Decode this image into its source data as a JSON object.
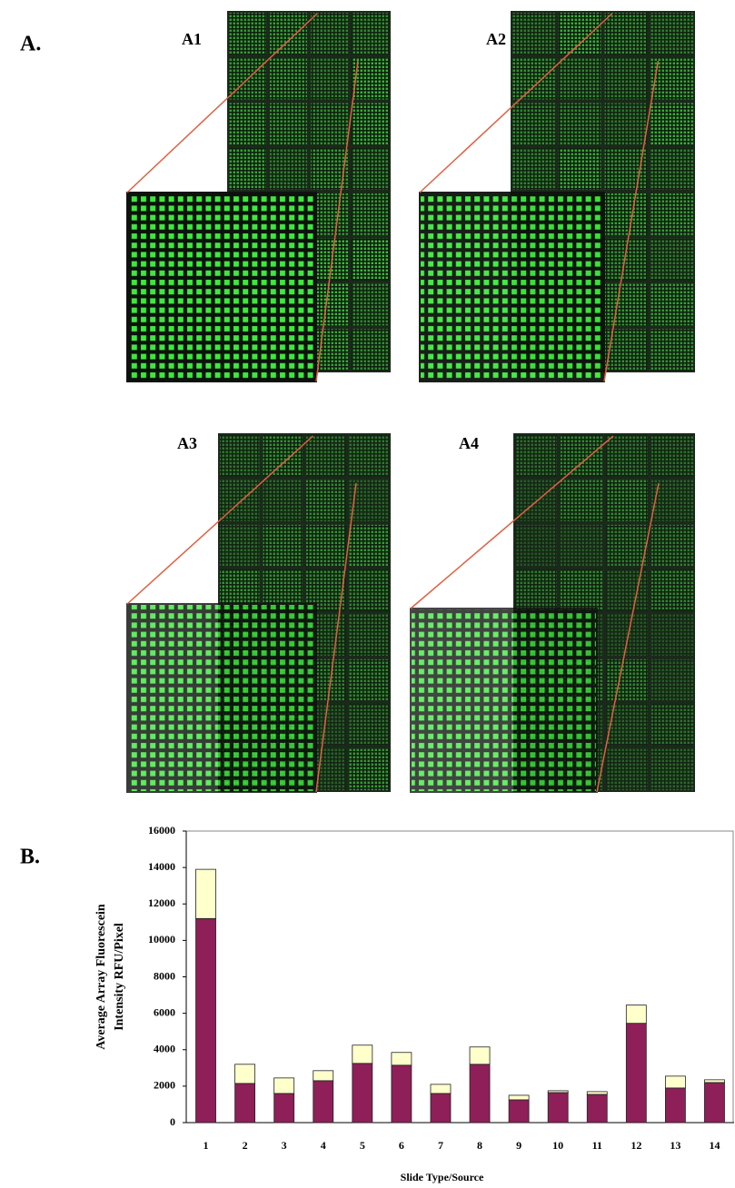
{
  "panel_a": {
    "label": "A.",
    "images": [
      "A1",
      "A2",
      "A3",
      "A4"
    ]
  },
  "panel_b": {
    "label": "B."
  },
  "chart_data": {
    "type": "stacked_bar",
    "categories": [
      "1",
      "2",
      "3",
      "4",
      "5",
      "6",
      "7",
      "8",
      "9",
      "10",
      "11",
      "12",
      "13",
      "14"
    ],
    "series": [
      {
        "color": "#8e1f58",
        "values": [
          11200,
          2150,
          1600,
          2300,
          3250,
          3150,
          1600,
          3200,
          1250,
          1650,
          1550,
          5450,
          1900,
          2200
        ]
      },
      {
        "color": "#ffffcc",
        "values": [
          2700,
          1050,
          850,
          550,
          1000,
          700,
          500,
          950,
          250,
          100,
          150,
          1000,
          650,
          150
        ]
      }
    ],
    "y_label": "Average Array Fluorescein Intensity RFU/Pixel",
    "x_label": "Slide Type/Source",
    "ylim": [
      0,
      16000
    ],
    "yticks": [
      0,
      2000,
      4000,
      6000,
      8000,
      10000,
      12000,
      14000,
      16000
    ],
    "grid": false
  }
}
